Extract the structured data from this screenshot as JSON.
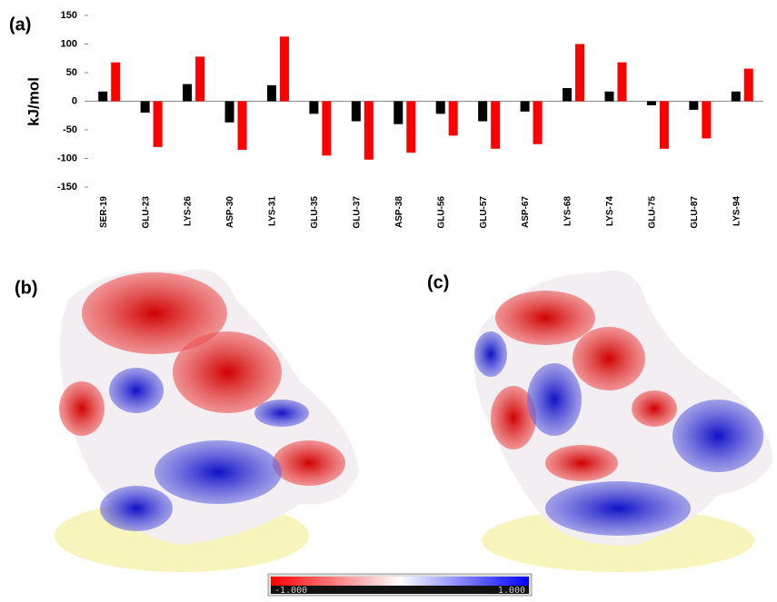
{
  "chart_data": {
    "type": "bar",
    "y_label": "kJ/mol",
    "categories": [
      "SER-19",
      "GLU-23",
      "LYS-26",
      "ASP-30",
      "LYS-31",
      "GLU-35",
      "GLU-37",
      "ASP-38",
      "GLU-56",
      "GLU-57",
      "ASP-67",
      "LYS-68",
      "LYS-74",
      "GLU-75",
      "GLU-87",
      "LYS-94"
    ],
    "series": [
      {
        "color": "#000000",
        "values": [
          17,
          -20,
          30,
          -37,
          28,
          -22,
          -35,
          -40,
          -22,
          -35,
          -18,
          23,
          17,
          -7,
          -15,
          17
        ]
      },
      {
        "color": "#ff0000",
        "values": [
          68,
          -80,
          78,
          -85,
          113,
          -95,
          -102,
          -90,
          -60,
          -83,
          -75,
          100,
          68,
          -83,
          -65,
          57
        ]
      }
    ],
    "ylim": [
      -150,
      150
    ],
    "yticks": [
      -150,
      -100,
      -50,
      0,
      50,
      100,
      150
    ],
    "grid": false
  },
  "panels": {
    "a": "(a)",
    "b": "(b)",
    "c": "(c)"
  },
  "colorbar": {
    "min_label": "-1.000",
    "max_label": "1.000"
  }
}
